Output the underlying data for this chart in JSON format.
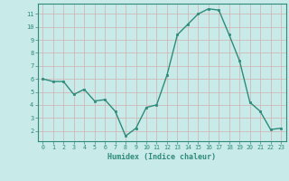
{
  "x": [
    0,
    1,
    2,
    3,
    4,
    5,
    6,
    7,
    8,
    9,
    10,
    11,
    12,
    13,
    14,
    15,
    16,
    17,
    18,
    19,
    20,
    21,
    22,
    23
  ],
  "y": [
    6.0,
    5.8,
    5.8,
    4.8,
    5.2,
    4.3,
    4.4,
    3.5,
    1.6,
    2.2,
    3.8,
    4.0,
    6.3,
    9.4,
    10.2,
    11.0,
    11.4,
    11.3,
    9.4,
    7.4,
    4.2,
    3.5,
    2.1,
    2.2
  ],
  "xlabel": "Humidex (Indice chaleur)",
  "ylabel": "",
  "line_color": "#2e8b7a",
  "marker_color": "#2e8b7a",
  "bg_color": "#c8eae8",
  "grid_color_minor": "#d4b0b0",
  "grid_color_major": "#d4b0b0",
  "axis_color": "#2e8b7a",
  "tick_color": "#2e8b7a",
  "label_color": "#2e8b7a",
  "ylim": [
    1.2,
    11.8
  ],
  "xlim": [
    -0.5,
    23.5
  ],
  "yticks": [
    2,
    3,
    4,
    5,
    6,
    7,
    8,
    9,
    10,
    11
  ],
  "xticks": [
    0,
    1,
    2,
    3,
    4,
    5,
    6,
    7,
    8,
    9,
    10,
    11,
    12,
    13,
    14,
    15,
    16,
    17,
    18,
    19,
    20,
    21,
    22,
    23
  ]
}
